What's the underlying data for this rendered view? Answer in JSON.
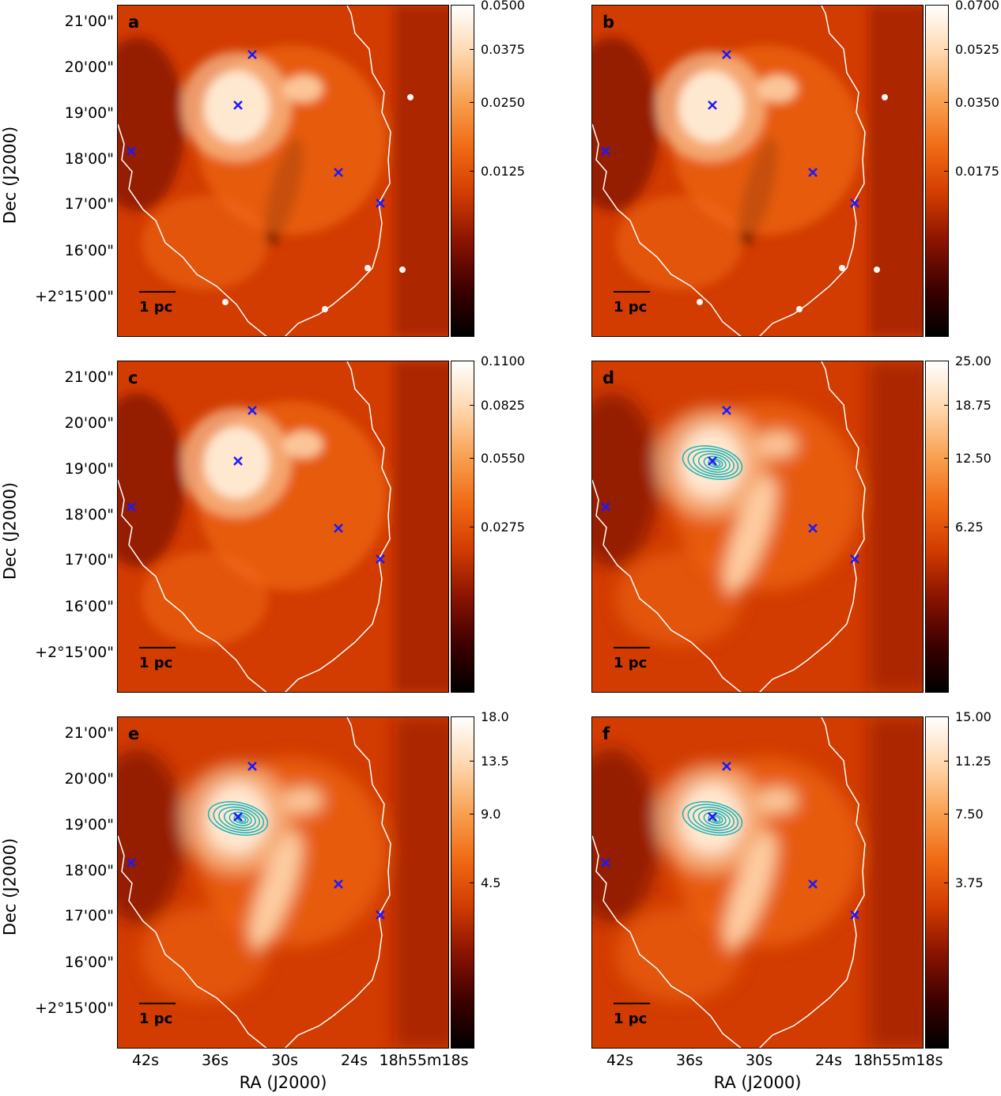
{
  "figure": {
    "axis_labels": {
      "y": "Dec (J2000)",
      "x": "RA (J2000)"
    },
    "dec_ticks": [
      "21'00\"",
      "20'00\"",
      "19'00\"",
      "18'00\"",
      "17'00\"",
      "16'00\"",
      "+2°15'00\""
    ],
    "ra_ticks": [
      "42s",
      "36s",
      "30s",
      "24s",
      "18h55m18s"
    ],
    "scalebar_label": "1 pc",
    "colormap": [
      "#000000",
      "#3c0000",
      "#8c1400",
      "#d23c00",
      "#f06a14",
      "#f8a050",
      "#ffd8b0",
      "#ffffff"
    ],
    "contour_color": "#17b3b8",
    "marker_color": "#1a1aff",
    "boundary_color": "#ffffff"
  },
  "chart_data": [
    {
      "panel": "a",
      "type": "heatmap",
      "colorbar_ticks": [
        "0.0500",
        "0.0375",
        "0.0250",
        "0.0125"
      ],
      "colorbar_tick_values": [
        0.05,
        0.0375,
        0.025,
        0.0125
      ],
      "colorbar_range": [
        0,
        0.05
      ],
      "contours": false
    },
    {
      "panel": "b",
      "type": "heatmap",
      "colorbar_ticks": [
        "0.0700",
        "0.0525",
        "0.0350",
        "0.0175"
      ],
      "colorbar_tick_values": [
        0.07,
        0.0525,
        0.035,
        0.0175
      ],
      "colorbar_range": [
        0,
        0.07
      ],
      "contours": false
    },
    {
      "panel": "c",
      "type": "heatmap",
      "colorbar_ticks": [
        "0.1100",
        "0.0825",
        "0.0550",
        "0.0275"
      ],
      "colorbar_tick_values": [
        0.11,
        0.0825,
        0.055,
        0.0275
      ],
      "colorbar_range": [
        0,
        0.11
      ],
      "contours": false
    },
    {
      "panel": "d",
      "type": "heatmap",
      "colorbar_ticks": [
        "25.00",
        "18.75",
        "12.50",
        "6.25"
      ],
      "colorbar_tick_values": [
        25,
        18.75,
        12.5,
        6.25
      ],
      "colorbar_range": [
        0,
        25
      ],
      "contours": true
    },
    {
      "panel": "e",
      "type": "heatmap",
      "colorbar_ticks": [
        "18.0",
        "13.5",
        "9.0",
        "4.5"
      ],
      "colorbar_tick_values": [
        18,
        13.5,
        9,
        4.5
      ],
      "colorbar_range": [
        0,
        18
      ],
      "contours": true
    },
    {
      "panel": "f",
      "type": "heatmap",
      "colorbar_ticks": [
        "15.00",
        "11.25",
        "7.50",
        "3.75"
      ],
      "colorbar_tick_values": [
        15,
        11.25,
        7.5,
        3.75
      ],
      "colorbar_range": [
        0,
        15
      ],
      "contours": true
    }
  ]
}
